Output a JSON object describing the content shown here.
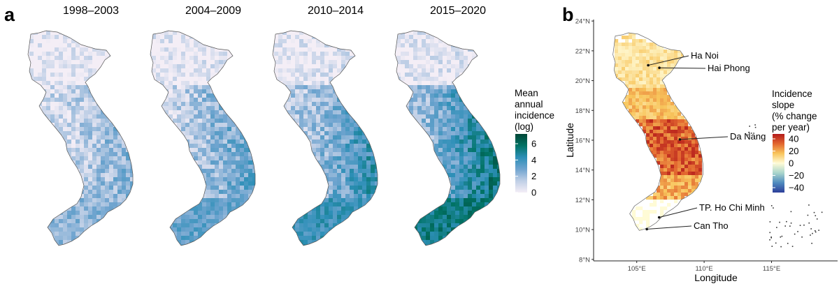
{
  "panel_a": {
    "letter": "a",
    "periods": [
      {
        "title": "1998–2003",
        "level": 0.35
      },
      {
        "title": "2004–2009",
        "level": 0.48
      },
      {
        "title": "2010–2014",
        "level": 0.62
      },
      {
        "title": "2015–2020",
        "level": 0.82
      }
    ],
    "legend": {
      "title_lines": [
        "Mean",
        "annual",
        "incidence",
        "(log)"
      ],
      "ticks": [
        "6",
        "4",
        "2",
        "0"
      ],
      "tick_values": [
        6,
        4,
        2,
        0
      ],
      "range": [
        0,
        7.2
      ],
      "colors": [
        "#f4eef6",
        "#bfcfe6",
        "#6fa4cf",
        "#2d8fb7",
        "#017365",
        "#014636"
      ]
    }
  },
  "panel_b": {
    "letter": "b",
    "legend": {
      "title_lines": [
        "Incidence",
        "slope",
        "(% change",
        "per year)"
      ],
      "ticks": [
        "40",
        "20",
        "0",
        "−20",
        "−40"
      ],
      "tick_values": [
        40,
        20,
        0,
        -20,
        -40
      ],
      "range": [
        -48,
        48
      ],
      "colors": [
        "#2c3e99",
        "#4f8bbf",
        "#a9d5cc",
        "#fffbd6",
        "#f8c55c",
        "#e2662f",
        "#b31a1a"
      ]
    },
    "axes": {
      "x_label": "Longitude",
      "y_label": "Latitude",
      "x_ticks": [
        "105°E",
        "110°E",
        "115°E"
      ],
      "x_tick_values": [
        105,
        110,
        115
      ],
      "y_ticks": [
        "24°N",
        "22°N",
        "20°N",
        "18°N",
        "16°N",
        "14°N",
        "12°N",
        "10°N",
        "8°N"
      ],
      "y_tick_values": [
        24,
        22,
        20,
        18,
        16,
        14,
        12,
        10,
        8
      ],
      "xlim": [
        101.8,
        119.9
      ],
      "ylim": [
        7.9,
        24.1
      ]
    },
    "cities": [
      {
        "name": "Ha Noi",
        "lon": 105.85,
        "lat": 21.03
      },
      {
        "name": "Hai Phong",
        "lon": 106.68,
        "lat": 20.86
      },
      {
        "name": "Da Nang",
        "lon": 108.2,
        "lat": 16.05
      },
      {
        "name": "TP. Ho Chi Minh",
        "lon": 106.66,
        "lat": 10.82
      },
      {
        "name": "Can Tho",
        "lon": 105.75,
        "lat": 10.03
      }
    ]
  }
}
